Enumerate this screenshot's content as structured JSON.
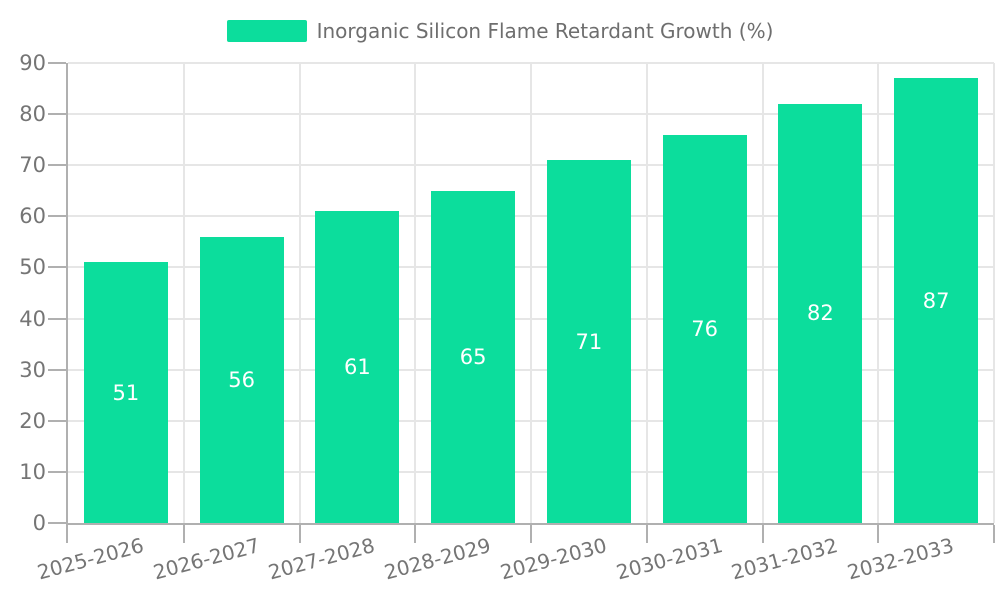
{
  "chart_data": {
    "type": "bar",
    "legend_label": "Inorganic Silicon Flame Retardant Growth (%)",
    "categories": [
      "2025-2026",
      "2026-2027",
      "2027-2028",
      "2028-2029",
      "2029-2030",
      "2030-2031",
      "2031-2032",
      "2032-2033"
    ],
    "values": [
      51,
      56,
      61,
      65,
      71,
      76,
      82,
      87
    ],
    "series": [
      {
        "name": "Inorganic Silicon Flame Retardant Growth (%)",
        "values": [
          51,
          56,
          61,
          65,
          71,
          76,
          82,
          87
        ]
      }
    ],
    "title": "",
    "xlabel": "",
    "ylabel": "",
    "ylim": [
      0,
      90
    ],
    "ytick_step": 10,
    "ytick_labels": [
      "0",
      "10",
      "20",
      "30",
      "40",
      "50",
      "60",
      "70",
      "80",
      "90"
    ],
    "grid": true,
    "legend_position": "top-center",
    "x_label_rotation_deg": -15,
    "bar_labels_inside": true,
    "colors": {
      "bar": "#0cdd9c",
      "bar_value_label": "#ffffff",
      "axis_tick_label": "#757575",
      "legend_text": "#6e6e6e",
      "gridline": "#e6e6e6",
      "axis_line": "#b0b0b0"
    }
  }
}
